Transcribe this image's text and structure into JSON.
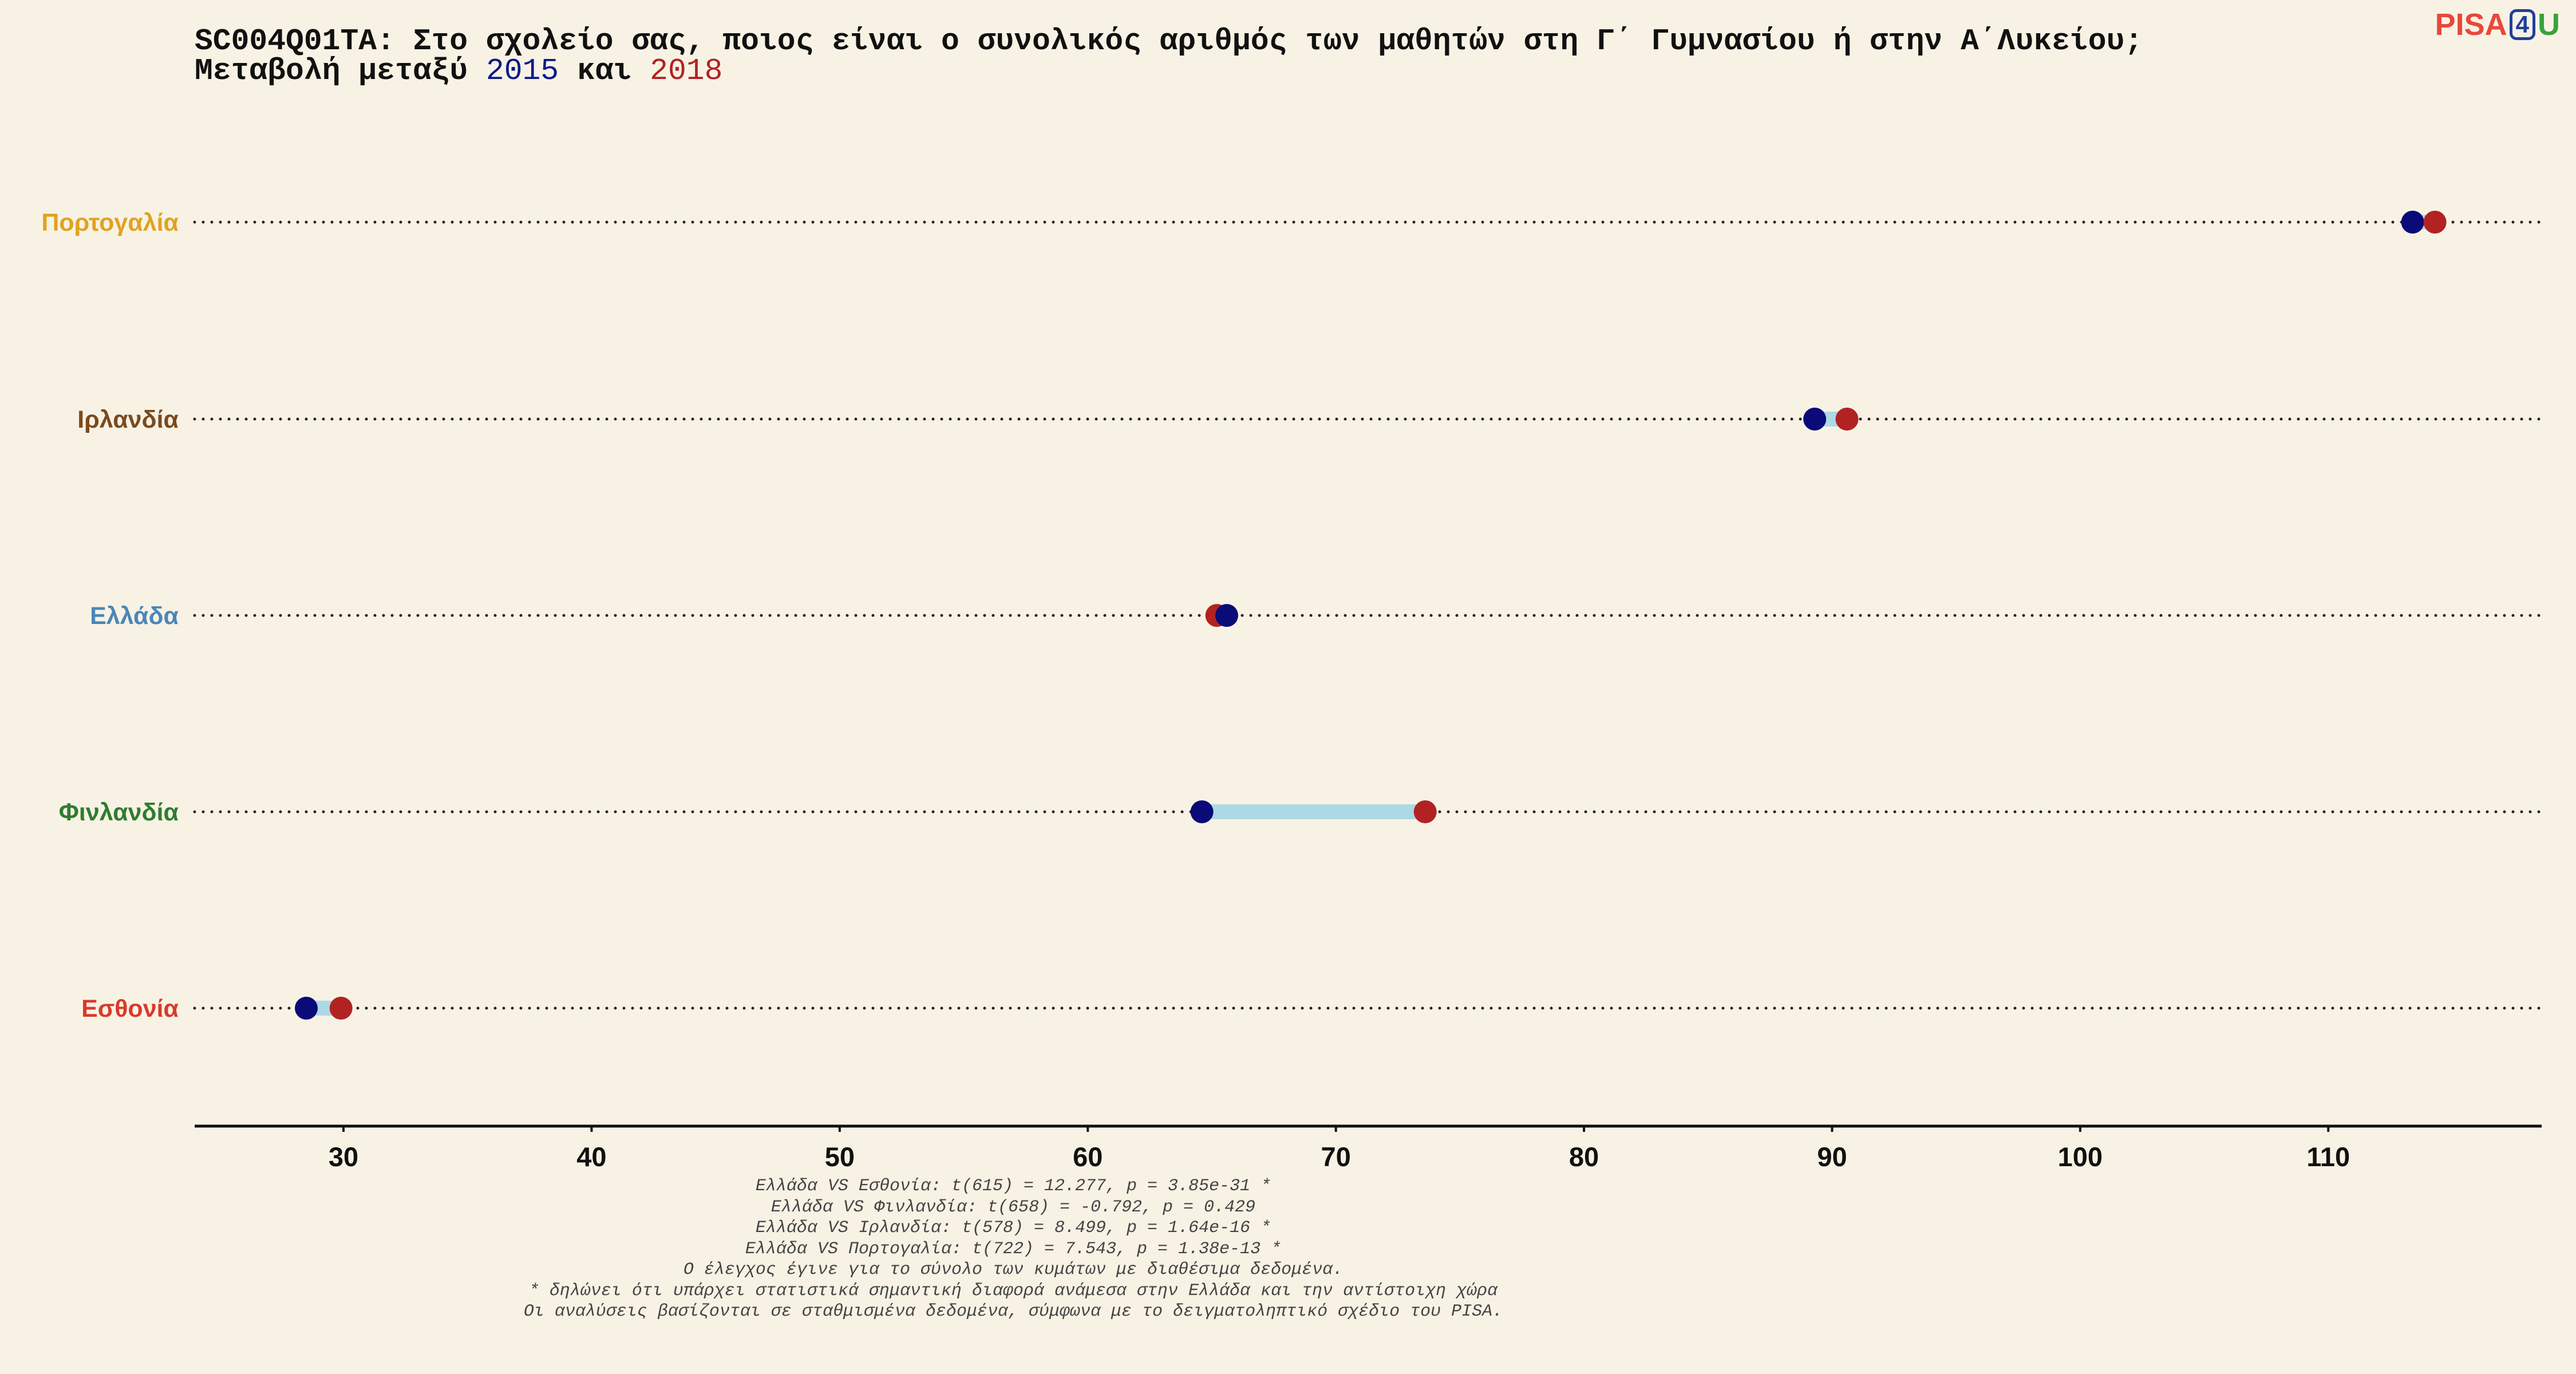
{
  "title": {
    "line1": "SC004Q01TA: Στο σχολείο σας, ποιος είναι ο συνολικός αριθμός των μαθητών στη Γ΄ Γυμνασίου ή στην Α΄Λυκείου;",
    "line2_prefix": "Μεταβολή μεταξύ ",
    "year1": "2015",
    "line2_mid": " και ",
    "year2": "2018"
  },
  "logo": {
    "part1": "PISA",
    "part2": "4",
    "part3": "U"
  },
  "colors": {
    "year_2015": "#0a0a78",
    "year_2018": "#b22222",
    "connector": "#add8e6",
    "axis": "#111111",
    "Πορτογαλία": "#e0a31f",
    "Ιρλανδία": "#7b4a1e",
    "Ελλάδα": "#4a86b8",
    "Φινλανδία": "#2e7d2e",
    "Εσθονία": "#d93a2b"
  },
  "chart_data": {
    "type": "dumbbell",
    "xlim": [
      24,
      118.6
    ],
    "xticks": [
      30,
      40,
      50,
      60,
      70,
      80,
      90,
      100,
      110
    ],
    "series_names": [
      "2015",
      "2018"
    ],
    "categories": [
      "Πορτογαλία",
      "Ιρλανδία",
      "Ελλάδα",
      "Φινλανδία",
      "Εσθονία"
    ],
    "values_2015": [
      113.4,
      89.3,
      65.6,
      64.6,
      28.5
    ],
    "values_2018": [
      114.3,
      90.6,
      65.2,
      73.6,
      29.9
    ],
    "grid": "dotted horizontal lines per category"
  },
  "notes": [
    "Ελλάδα VS Εσθονία: t(615) = 12.277, p = 3.85e-31 *",
    "Ελλάδα VS Φινλανδία: t(658) = -0.792, p = 0.429",
    "Ελλάδα VS Ιρλανδία: t(578) = 8.499, p = 1.64e-16 *",
    "Ελλάδα VS Πορτογαλία: t(722) = 7.543, p = 1.38e-13 *",
    "Ο έλεγχος έγινε για το σύνολο των κυμάτων με διαθέσιμα δεδομένα.",
    "* δηλώνει ότι υπάρχει στατιστικά σημαντική διαφορά ανάμεσα στην Ελλάδα και την αντίστοιχη χώρα",
    "Οι αναλύσεις βασίζονται σε σταθμισμένα δεδομένα, σύμφωνα με το δειγματοληπτικό σχέδιο του PISA."
  ]
}
